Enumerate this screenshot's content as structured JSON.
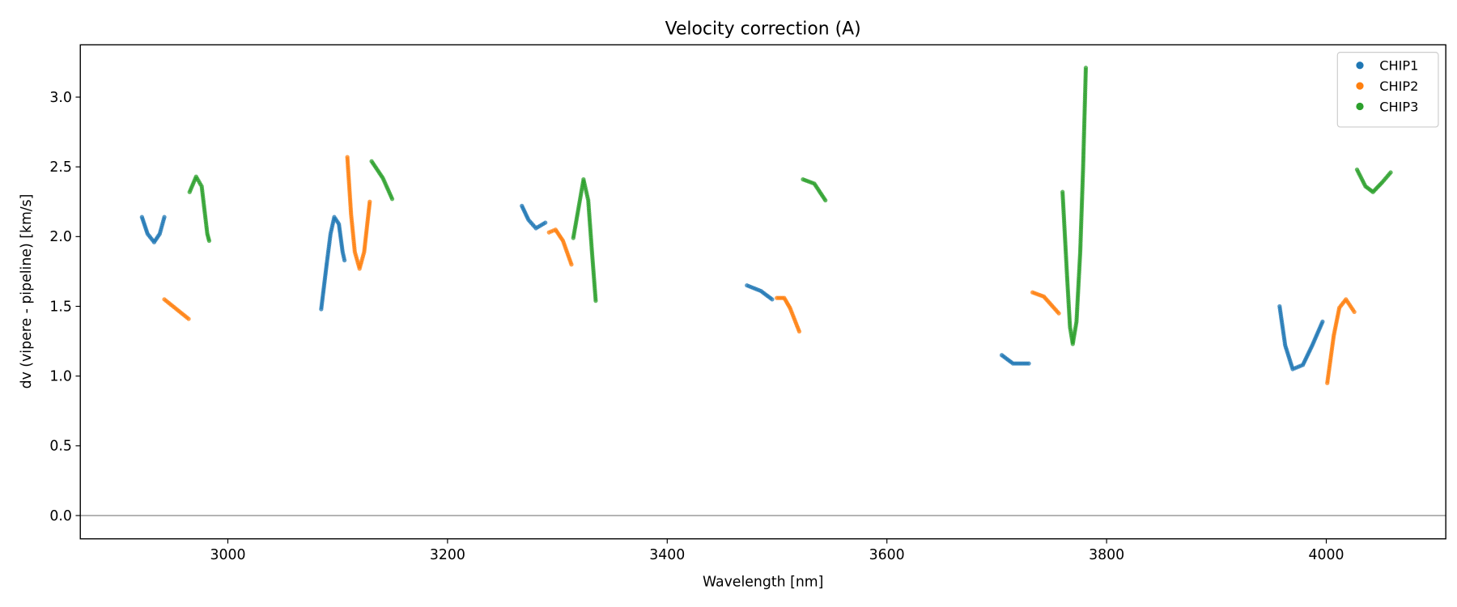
{
  "chart_data": {
    "type": "scatter",
    "title": "Velocity correction (A)",
    "xlabel": "Wavelength [nm]",
    "ylabel": "dv (vipere - pipeline) [km/s]",
    "xlim": [
      2865.7,
      4108.8
    ],
    "ylim": [
      -0.167,
      3.375
    ],
    "xticks": [
      3000,
      3200,
      3400,
      3600,
      3800,
      4000
    ],
    "xtick_labels": [
      "3000",
      "3200",
      "3400",
      "3600",
      "3800",
      "4000"
    ],
    "yticks": [
      0,
      0.5,
      1,
      1.5,
      2,
      2.5,
      3
    ],
    "ytick_labels": [
      "0.0",
      "0.5",
      "1.0",
      "1.5",
      "2.0",
      "2.5",
      "3.0"
    ],
    "hline": 0,
    "grid": false,
    "legend_position": "top-right",
    "series": [
      {
        "name": "CHIP1",
        "color": "#1f77b4",
        "segments": [
          [
            [
              2921.8,
              2.14
            ],
            [
              2926.9,
              2.02
            ],
            [
              2932.9,
              1.96
            ],
            [
              2938.0,
              2.02
            ],
            [
              2942.2,
              2.14
            ]
          ],
          [
            [
              3085.0,
              1.48
            ],
            [
              3090.1,
              1.81
            ],
            [
              3093.5,
              2.02
            ],
            [
              3096.9,
              2.14
            ],
            [
              3101.1,
              2.09
            ],
            [
              3104.5,
              1.89
            ],
            [
              3106.2,
              1.83
            ]
          ],
          [
            [
              3267.7,
              2.22
            ],
            [
              3273.7,
              2.12
            ],
            [
              3280.5,
              2.06
            ],
            [
              3289.0,
              2.1
            ]
          ],
          [
            [
              3472.6,
              1.65
            ],
            [
              3485.3,
              1.61
            ],
            [
              3495.5,
              1.55
            ]
          ],
          [
            [
              3704.6,
              1.15
            ],
            [
              3714.8,
              1.09
            ],
            [
              3729.2,
              1.09
            ]
          ],
          [
            [
              3957.5,
              1.5
            ],
            [
              3962.6,
              1.22
            ],
            [
              3969.4,
              1.05
            ],
            [
              3978.7,
              1.08
            ],
            [
              3987.2,
              1.22
            ],
            [
              3996.6,
              1.39
            ]
          ]
        ]
      },
      {
        "name": "CHIP2",
        "color": "#ff7f0e",
        "segments": [
          [
            [
              2942.2,
              1.55
            ],
            [
              2964.3,
              1.41
            ]
          ],
          [
            [
              3108.8,
              2.57
            ],
            [
              3112.2,
              2.16
            ],
            [
              3115.6,
              1.89
            ],
            [
              3119.9,
              1.77
            ],
            [
              3124.1,
              1.89
            ],
            [
              3129.2,
              2.25
            ]
          ],
          [
            [
              3292.4,
              2.03
            ],
            [
              3298.3,
              2.05
            ],
            [
              3305.1,
              1.97
            ],
            [
              3312.8,
              1.8
            ]
          ],
          [
            [
              3499.8,
              1.56
            ],
            [
              3506.5,
              1.56
            ],
            [
              3511.7,
              1.49
            ],
            [
              3520.2,
              1.32
            ]
          ],
          [
            [
              3732.6,
              1.6
            ],
            [
              3742.9,
              1.57
            ],
            [
              3756.5,
              1.45
            ]
          ],
          [
            [
              4000.9,
              0.95
            ],
            [
              4006.8,
              1.29
            ],
            [
              4011.9,
              1.49
            ],
            [
              4017.9,
              1.55
            ],
            [
              4025.5,
              1.46
            ]
          ]
        ]
      },
      {
        "name": "CHIP3",
        "color": "#2ca02c",
        "segments": [
          [
            [
              2965.2,
              2.32
            ],
            [
              2971.1,
              2.43
            ],
            [
              2976.2,
              2.36
            ],
            [
              2981.3,
              2.02
            ],
            [
              2983.0,
              1.97
            ]
          ],
          [
            [
              3130.9,
              2.54
            ],
            [
              3141.1,
              2.42
            ],
            [
              3149.6,
              2.27
            ]
          ],
          [
            [
              3314.5,
              1.99
            ],
            [
              3319.6,
              2.22
            ],
            [
              3323.8,
              2.41
            ],
            [
              3328.1,
              2.26
            ],
            [
              3331.5,
              1.89
            ],
            [
              3334.9,
              1.54
            ]
          ],
          [
            [
              3523.6,
              2.41
            ],
            [
              3533.9,
              2.38
            ],
            [
              3544.0,
              2.26
            ]
          ],
          [
            [
              3759.9,
              2.32
            ],
            [
              3764.2,
              1.69
            ],
            [
              3766.7,
              1.35
            ],
            [
              3769.2,
              1.23
            ],
            [
              3772.6,
              1.39
            ],
            [
              3776.0,
              1.89
            ],
            [
              3778.6,
              2.49
            ],
            [
              3781.1,
              3.21
            ]
          ],
          [
            [
              4028.0,
              2.48
            ],
            [
              4035.7,
              2.36
            ],
            [
              4042.5,
              2.32
            ],
            [
              4051.0,
              2.39
            ],
            [
              4058.6,
              2.46
            ]
          ]
        ]
      }
    ]
  }
}
